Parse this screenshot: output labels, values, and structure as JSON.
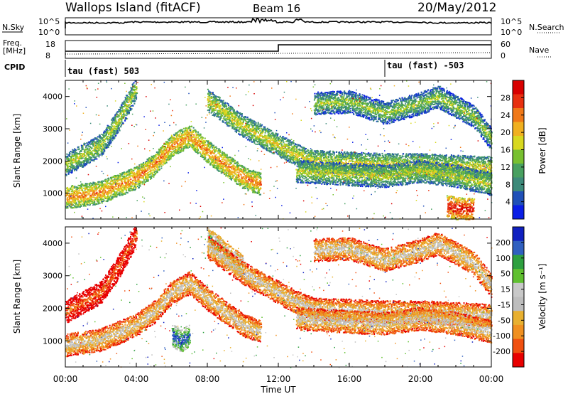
{
  "header": {
    "site": "Wallops Island (fitACF)",
    "beam": "Beam 16",
    "date": "20/May/2012"
  },
  "top_panels": {
    "nsky_label": "N.Sky",
    "nsky_ticks": [
      "10^5",
      "10^0"
    ],
    "nsearch_label": "N.Search",
    "nsearch_ticks": [
      "10^5",
      "10^0"
    ],
    "freq_label": "Freq.",
    "freq_unit": "[MHz]",
    "freq_ticks": [
      "18",
      "8"
    ],
    "nave_label": "Nave",
    "nave_ticks": [
      "60",
      "0"
    ],
    "cpid_label": "CPID",
    "cpid_segments": [
      {
        "label": "tau (fast) 503",
        "start_hour": 0
      },
      {
        "label": "tau (fast) -503",
        "start_hour": 18
      }
    ]
  },
  "chart_data": [
    {
      "type": "heatmap",
      "name": "power",
      "ylabel": "Slant Range [km]",
      "xlabel": "Time UT",
      "ylim": [
        200,
        4500
      ],
      "yticks": [
        "1000",
        "2000",
        "3000",
        "4000"
      ],
      "xticks": [
        "00:00",
        "04:00",
        "08:00",
        "12:00",
        "16:00",
        "20:00",
        "00:00"
      ],
      "colorbar_label": "Power [dB]",
      "colorbar_ticks": [
        "28",
        "24",
        "20",
        "16",
        "12",
        "8",
        "4"
      ],
      "colors": [
        "#0a1ee6",
        "#2050b8",
        "#3d8a7a",
        "#48a060",
        "#78c030",
        "#d8d820",
        "#f0b020",
        "#f07818",
        "#e83010",
        "#d80000"
      ],
      "bands": [
        {
          "points": [
            [
              0,
              880
            ],
            [
              2,
              1050
            ],
            [
              4,
              1500
            ],
            [
              5,
              1900
            ],
            [
              6,
              2500
            ],
            [
              7,
              2800
            ],
            [
              8,
              2300
            ],
            [
              9,
              1900
            ],
            [
              10,
              1500
            ],
            [
              11,
              1300
            ]
          ],
          "level": 0.75
        },
        {
          "points": [
            [
              0,
              1900
            ],
            [
              2,
              2500
            ],
            [
              3,
              3300
            ],
            [
              4,
              4300
            ]
          ],
          "level": 0.55
        },
        {
          "points": [
            [
              8,
              3900
            ],
            [
              9,
              3500
            ],
            [
              10,
              3100
            ],
            [
              11,
              2800
            ],
            [
              12,
              2500
            ],
            [
              13,
              2200
            ],
            [
              14,
              2000
            ],
            [
              16,
              1950
            ],
            [
              18,
              1900
            ],
            [
              20,
              1900
            ],
            [
              22,
              1850
            ],
            [
              24,
              1800
            ]
          ],
          "level": 0.6
        },
        {
          "points": [
            [
              13,
              1700
            ],
            [
              16,
              1600
            ],
            [
              18,
              1550
            ],
            [
              20,
              1700
            ],
            [
              22,
              1550
            ],
            [
              24,
              1300
            ]
          ],
          "level": 0.55
        },
        {
          "points": [
            [
              14,
              3800
            ],
            [
              16,
              3850
            ],
            [
              18,
              3500
            ],
            [
              20,
              3800
            ],
            [
              21,
              4000
            ],
            [
              23,
              3400
            ],
            [
              24,
              2700
            ]
          ],
          "level": 0.5
        },
        {
          "points": [
            [
              21.5,
              600
            ],
            [
              22,
              550
            ],
            [
              23,
              500
            ]
          ],
          "level": 0.95
        }
      ]
    },
    {
      "type": "heatmap",
      "name": "velocity",
      "ylabel": "Slant Range [km]",
      "xlabel": "Time UT",
      "ylim": [
        200,
        4500
      ],
      "yticks": [
        "1000",
        "2000",
        "3000",
        "4000"
      ],
      "xticks": [
        "00:00",
        "04:00",
        "08:00",
        "12:00",
        "16:00",
        "20:00",
        "00:00"
      ],
      "colorbar_label": "Velocity [m s⁻¹]",
      "colorbar_ticks": [
        "200",
        "100",
        "50",
        "15",
        "-15",
        "-50",
        "-100",
        "-200"
      ],
      "colors": [
        "#e80000",
        "#f05010",
        "#f09020",
        "#e8b030",
        "#bdbdbd",
        "#c8c8c8",
        "#60c030",
        "#2ea040",
        "#3060c0",
        "#1020c0"
      ],
      "bands": [
        {
          "points": [
            [
              0,
              880
            ],
            [
              2,
              1050
            ],
            [
              4,
              1500
            ],
            [
              5,
              1900
            ],
            [
              6,
              2500
            ],
            [
              7,
              2800
            ],
            [
              8,
              2300
            ],
            [
              9,
              1900
            ],
            [
              10,
              1500
            ],
            [
              11,
              1300
            ]
          ],
          "level": 0.48
        },
        {
          "points": [
            [
              0,
              1900
            ],
            [
              2,
              2500
            ],
            [
              3,
              3300
            ],
            [
              4,
              4300
            ]
          ],
          "level": 0.22
        },
        {
          "points": [
            [
              8,
              4200
            ],
            [
              9,
              3700
            ],
            [
              10,
              3300
            ]
          ],
          "level": 0.68
        },
        {
          "points": [
            [
              8,
              3900
            ],
            [
              9,
              3500
            ],
            [
              10,
              3100
            ],
            [
              11,
              2800
            ],
            [
              12,
              2500
            ],
            [
              13,
              2200
            ],
            [
              14,
              2000
            ],
            [
              16,
              1950
            ],
            [
              18,
              1900
            ],
            [
              20,
              1900
            ],
            [
              22,
              1850
            ],
            [
              24,
              1800
            ]
          ],
          "level": 0.48
        },
        {
          "points": [
            [
              13,
              1700
            ],
            [
              16,
              1600
            ],
            [
              18,
              1550
            ],
            [
              20,
              1700
            ],
            [
              22,
              1550
            ],
            [
              24,
              1300
            ]
          ],
          "level": 0.5
        },
        {
          "points": [
            [
              14,
              3800
            ],
            [
              16,
              3850
            ],
            [
              18,
              3500
            ],
            [
              20,
              3800
            ],
            [
              21,
              4000
            ],
            [
              23,
              3400
            ],
            [
              24,
              2700
            ]
          ],
          "level": 0.5
        },
        {
          "points": [
            [
              6,
              1200
            ],
            [
              6.5,
              1000
            ],
            [
              7,
              1200
            ]
          ],
          "level": 0.92
        }
      ]
    }
  ]
}
